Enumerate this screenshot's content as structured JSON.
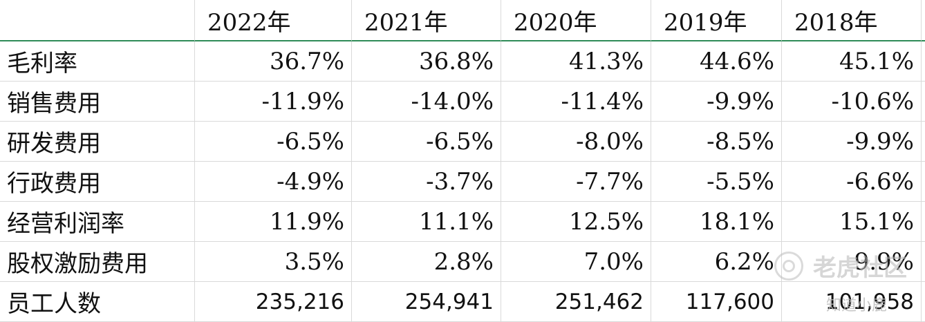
{
  "table": {
    "corner": "",
    "years": [
      "2022年",
      "2021年",
      "2020年",
      "2019年",
      "2018年"
    ],
    "rows": [
      {
        "label": "毛利率",
        "values": [
          "36.7%",
          "36.8%",
          "41.3%",
          "44.6%",
          "45.1%"
        ]
      },
      {
        "label": "销售费用",
        "values": [
          "-11.9%",
          "-14.0%",
          "-11.4%",
          "-9.9%",
          "-10.6%"
        ]
      },
      {
        "label": "研发费用",
        "values": [
          "-6.5%",
          "-6.5%",
          "-8.0%",
          "-8.5%",
          "-9.9%"
        ]
      },
      {
        "label": "行政费用",
        "values": [
          "-4.9%",
          "-3.7%",
          "-7.7%",
          "-5.5%",
          "-6.6%"
        ]
      },
      {
        "label": "经营利润率",
        "values": [
          "11.9%",
          "11.1%",
          "12.5%",
          "18.1%",
          "15.1%"
        ]
      },
      {
        "label": "股权激励费用",
        "values": [
          "3.5%",
          "2.8%",
          "7.0%",
          "6.2%",
          "9.9%"
        ]
      },
      {
        "label": "员工人数",
        "values": [
          "235,216",
          "254,941",
          "251,462",
          "117,600",
          "101,958"
        ]
      }
    ]
  },
  "watermark": {
    "brand": "老虎社区",
    "sub": "知道小鹿"
  }
}
